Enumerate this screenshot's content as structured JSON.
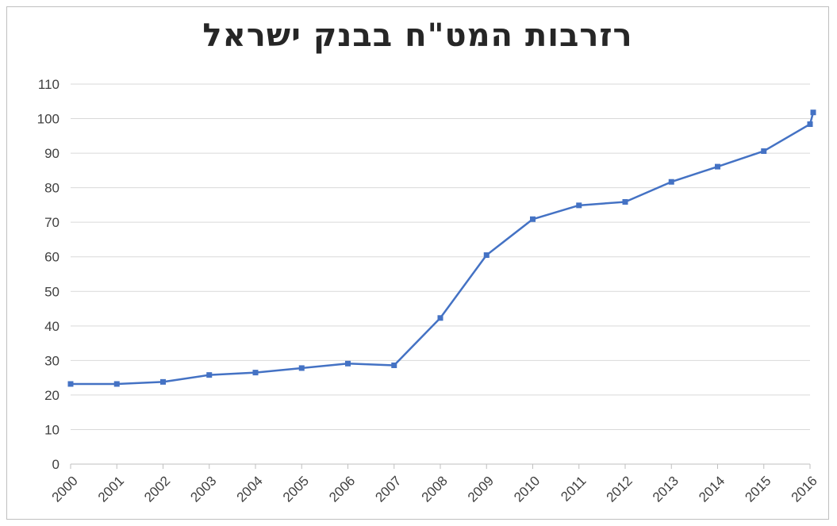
{
  "chart_data": {
    "type": "line",
    "title": "רזרבות המט\"ח בבנק ישראל",
    "xlabel": "",
    "ylabel": "",
    "categories": [
      "2000",
      "2001",
      "2002",
      "2003",
      "2004",
      "2005",
      "2006",
      "2007",
      "2008",
      "2009",
      "2010",
      "2011",
      "2012",
      "2013",
      "2014",
      "2015",
      "2016"
    ],
    "series": [
      {
        "values": [
          23.2,
          23.2,
          23.8,
          25.8,
          26.5,
          27.8,
          29.1,
          28.6,
          42.3,
          60.5,
          70.9,
          74.9,
          75.9,
          81.7,
          86.1,
          90.6,
          98.4
        ],
        "color": "#4472c4"
      }
    ],
    "extra_point": {
      "value": 101.8
    },
    "ylim": [
      0,
      110
    ],
    "yticks": [
      "0",
      "10",
      "20",
      "30",
      "40",
      "50",
      "60",
      "70",
      "80",
      "90",
      "100",
      "110"
    ],
    "grid": true,
    "legend": "none"
  }
}
